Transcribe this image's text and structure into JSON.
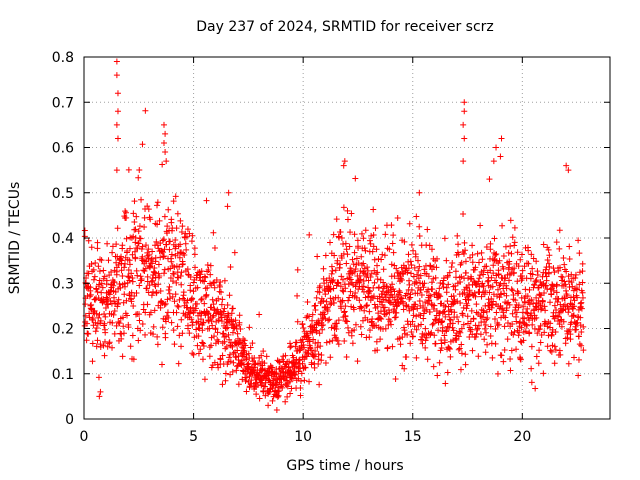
{
  "chart_data": {
    "type": "scatter",
    "title": "Day 237 of 2024, SRMTID for receiver scrz",
    "xlabel": "GPS time / hours",
    "ylabel": "SRMTID / TECUs",
    "xlim": [
      0,
      24
    ],
    "ylim": [
      0,
      0.8
    ],
    "x_ticks": [
      0,
      5,
      10,
      15,
      20
    ],
    "x_tick_labels": [
      "0",
      "5",
      "10",
      "15",
      "20"
    ],
    "y_ticks": [
      0,
      0.1,
      0.2,
      0.3,
      0.4,
      0.5,
      0.6,
      0.7,
      0.8
    ],
    "y_tick_labels": [
      "0",
      "0.1",
      "0.2",
      "0.3",
      "0.4",
      "0.5",
      "0.6",
      "0.7",
      "0.8"
    ],
    "grid": true,
    "marker": "+",
    "series_color": "#ff0000",
    "time_range_hours": [
      0,
      22.8
    ],
    "trend_profile": [
      {
        "hour": 0.0,
        "typical": 0.27
      },
      {
        "hour": 1.0,
        "typical": 0.24
      },
      {
        "hour": 2.0,
        "typical": 0.33
      },
      {
        "hour": 3.5,
        "typical": 0.32
      },
      {
        "hour": 4.5,
        "typical": 0.3
      },
      {
        "hour": 5.5,
        "typical": 0.23
      },
      {
        "hour": 6.5,
        "typical": 0.2
      },
      {
        "hour": 7.5,
        "typical": 0.11
      },
      {
        "hour": 8.5,
        "typical": 0.08
      },
      {
        "hour": 9.5,
        "typical": 0.11
      },
      {
        "hour": 10.5,
        "typical": 0.18
      },
      {
        "hour": 11.5,
        "typical": 0.29
      },
      {
        "hour": 12.5,
        "typical": 0.29
      },
      {
        "hour": 14.0,
        "typical": 0.27
      },
      {
        "hour": 15.5,
        "typical": 0.27
      },
      {
        "hour": 16.5,
        "typical": 0.24
      },
      {
        "hour": 17.5,
        "typical": 0.26
      },
      {
        "hour": 18.5,
        "typical": 0.25
      },
      {
        "hour": 19.5,
        "typical": 0.28
      },
      {
        "hour": 20.5,
        "typical": 0.24
      },
      {
        "hour": 21.5,
        "typical": 0.25
      },
      {
        "hour": 22.8,
        "typical": 0.24
      }
    ],
    "notable_points": [
      {
        "x": 1.5,
        "y": 0.79
      },
      {
        "x": 1.5,
        "y": 0.76
      },
      {
        "x": 1.55,
        "y": 0.72
      },
      {
        "x": 1.55,
        "y": 0.68
      },
      {
        "x": 1.5,
        "y": 0.65
      },
      {
        "x": 1.55,
        "y": 0.62
      },
      {
        "x": 1.5,
        "y": 0.55
      },
      {
        "x": 3.65,
        "y": 0.65
      },
      {
        "x": 3.7,
        "y": 0.63
      },
      {
        "x": 3.65,
        "y": 0.61
      },
      {
        "x": 3.7,
        "y": 0.59
      },
      {
        "x": 3.75,
        "y": 0.57
      },
      {
        "x": 6.6,
        "y": 0.5
      },
      {
        "x": 6.55,
        "y": 0.47
      },
      {
        "x": 11.9,
        "y": 0.57
      },
      {
        "x": 11.85,
        "y": 0.56
      },
      {
        "x": 15.3,
        "y": 0.5
      },
      {
        "x": 17.35,
        "y": 0.7
      },
      {
        "x": 17.35,
        "y": 0.68
      },
      {
        "x": 17.3,
        "y": 0.65
      },
      {
        "x": 17.35,
        "y": 0.62
      },
      {
        "x": 17.3,
        "y": 0.57
      },
      {
        "x": 18.8,
        "y": 0.6
      },
      {
        "x": 19.05,
        "y": 0.62
      },
      {
        "x": 19.0,
        "y": 0.58
      },
      {
        "x": 18.7,
        "y": 0.57
      },
      {
        "x": 18.5,
        "y": 0.53
      },
      {
        "x": 22.0,
        "y": 0.56
      },
      {
        "x": 22.1,
        "y": 0.55
      },
      {
        "x": 0.75,
        "y": 0.06
      },
      {
        "x": 0.7,
        "y": 0.05
      },
      {
        "x": 8.8,
        "y": 0.02
      },
      {
        "x": 8.6,
        "y": 0.04
      },
      {
        "x": 8.4,
        "y": 0.03
      }
    ]
  }
}
